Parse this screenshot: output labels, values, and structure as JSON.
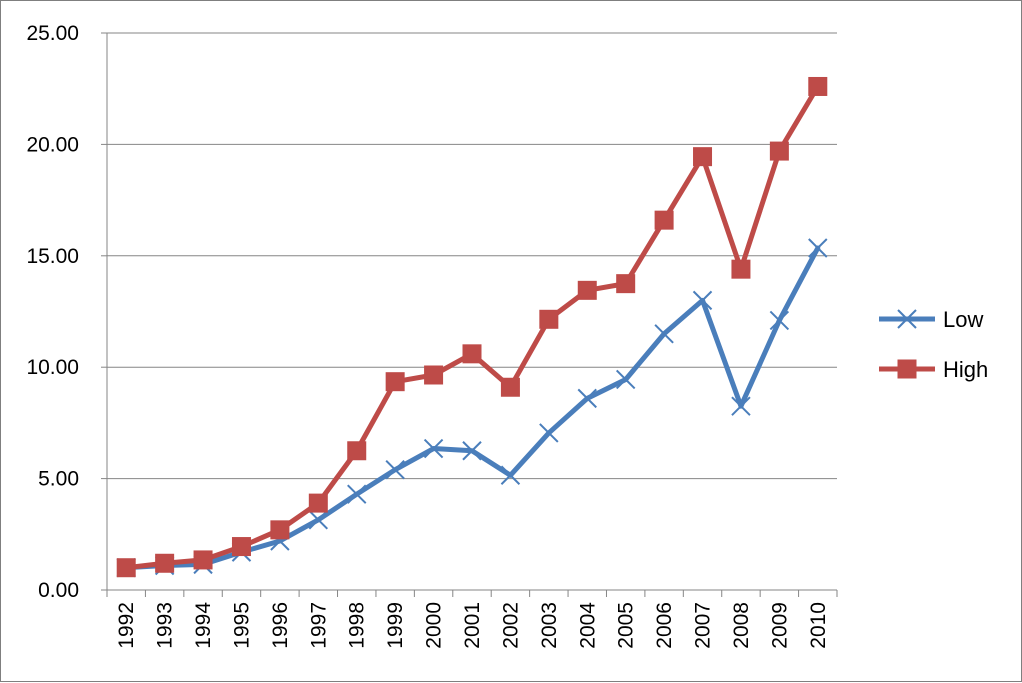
{
  "chart_data": {
    "type": "line",
    "title": "",
    "xlabel": "",
    "ylabel": "",
    "categories": [
      "1992",
      "1993",
      "1994",
      "1995",
      "1996",
      "1997",
      "1998",
      "1999",
      "2000",
      "2001",
      "2002",
      "2003",
      "2004",
      "2005",
      "2006",
      "2007",
      "2008",
      "2009",
      "2010"
    ],
    "ylim": [
      0,
      25
    ],
    "y_ticks": [
      "0.00",
      "5.00",
      "10.00",
      "15.00",
      "20.00",
      "25.00"
    ],
    "grid": true,
    "legend_position": "right",
    "series": [
      {
        "name": "Low",
        "color": "#4a7ebb",
        "marker": "x",
        "values": [
          1.0,
          1.1,
          1.15,
          1.7,
          2.2,
          3.15,
          4.3,
          5.4,
          6.35,
          6.25,
          5.15,
          7.05,
          8.6,
          9.45,
          11.5,
          13.0,
          8.25,
          12.1,
          15.35
        ]
      },
      {
        "name": "High",
        "color": "#be4b48",
        "marker": "square",
        "values": [
          1.0,
          1.2,
          1.35,
          1.95,
          2.7,
          3.9,
          6.25,
          9.35,
          9.65,
          10.6,
          9.1,
          12.15,
          13.45,
          13.75,
          16.6,
          19.45,
          14.4,
          19.7,
          22.6
        ]
      }
    ]
  }
}
